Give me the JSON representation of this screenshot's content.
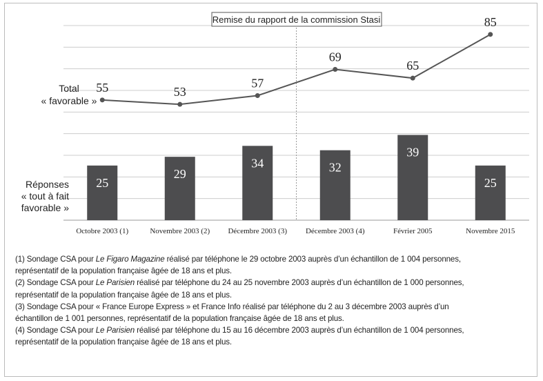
{
  "chart_data": {
    "type": "bar-line",
    "annotation": "Remise du rapport de la commission Stasi",
    "line_label": [
      "Total",
      "« favorable »"
    ],
    "bar_label": [
      "Réponses",
      "« tout à fait",
      "favorable »"
    ],
    "categories": [
      "Octobre 2003 (1)",
      "Novembre 2003 (2)",
      "Décembre 2003 (3)",
      "Décembre 2003 (4)",
      "Février 2005",
      "Novembre 2015"
    ],
    "series": [
      {
        "name": "Réponses « tout à fait favorable »",
        "kind": "bar",
        "color": "#4d4d4f",
        "values": [
          25,
          29,
          34,
          32,
          39,
          25
        ]
      },
      {
        "name": "Total « favorable »",
        "kind": "line",
        "color": "#555555",
        "values": [
          55,
          53,
          57,
          69,
          65,
          85
        ]
      }
    ],
    "ylim": [
      0,
      90
    ],
    "grid": true
  },
  "notes": [
    {
      "lead": "(1) Sondage CSA pour ",
      "italic": "Le Figaro Magazine",
      "rest": " réalisé par téléphone le 29 octobre 2003 auprès d’un échantillon de 1 004 personnes,",
      "cont": "représentatif de la population française âgée de 18 ans et plus."
    },
    {
      "lead": "(2) Sondage CSA pour ",
      "italic": "Le Parisien",
      "rest": " réalisé par téléphone du 24 au 25 novembre 2003 auprès d’un échantillon de 1 000 personnes,",
      "cont": "représentatif de la population française âgée de 18 ans et plus."
    },
    {
      "lead": "(3) Sondage CSA pour « France Europe Express » et France Info réalisé par téléphone du 2 au 3 décembre 2003 auprès d’un",
      "cont": "échantillon de 1 001 personnes, représentatif de la population française âgée de 18 ans et plus."
    },
    {
      "lead": "(4) Sondage CSA pour ",
      "italic": "Le Parisien",
      "rest": " réalisé par téléphone du 15 au 16 décembre 2003 auprès d’un échantillon de 1 004 personnes,",
      "cont": "représentatif de la population française âgée de 18 ans et plus."
    }
  ]
}
